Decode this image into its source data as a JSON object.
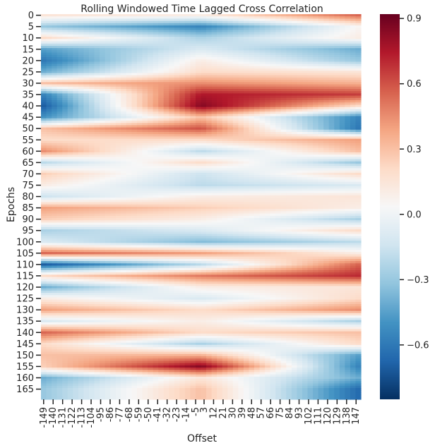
{
  "chart_data": {
    "type": "heatmap",
    "title": "Rolling Windowed Time Lagged Cross Correlation",
    "xlabel": "Offset",
    "ylabel": "Epochs",
    "x_tick_labels": [
      "-149",
      "-140",
      "-131",
      "-122",
      "-113",
      "-104",
      "-95",
      "-86",
      "-77",
      "-68",
      "-59",
      "-50",
      "-41",
      "-32",
      "-23",
      "-14",
      "-5",
      "3",
      "12",
      "21",
      "30",
      "39",
      "48",
      "57",
      "66",
      "75",
      "84",
      "93",
      "102",
      "111",
      "120",
      "129",
      "138",
      "147"
    ],
    "y_tick_labels": [
      "0",
      "5",
      "10",
      "15",
      "20",
      "25",
      "30",
      "35",
      "40",
      "45",
      "50",
      "55",
      "60",
      "65",
      "70",
      "75",
      "80",
      "85",
      "90",
      "95",
      "100",
      "105",
      "110",
      "115",
      "120",
      "125",
      "130",
      "135",
      "140",
      "145",
      "150",
      "155",
      "160",
      "165"
    ],
    "x_range": [
      -149,
      149
    ],
    "epochs": 170,
    "colorbar": {
      "colormap": "RdBu_r",
      "range": [
        -0.85,
        0.92
      ],
      "ticks": [
        0.9,
        0.6,
        0.3,
        0.0,
        -0.3,
        -0.6
      ],
      "tick_labels": [
        "0.9",
        "0.6",
        "0.3",
        "0.0",
        "−0.3",
        "−0.6"
      ]
    },
    "rows": [
      {
        "epoch": 0,
        "left": 0.15,
        "center": 0.1,
        "right": 0.55
      },
      {
        "epoch": 5,
        "left": -0.3,
        "center": -0.55,
        "right": 0.05
      },
      {
        "epoch": 10,
        "left": 0.2,
        "center": -0.25,
        "right": 0.1
      },
      {
        "epoch": 15,
        "left": -0.45,
        "center": -0.1,
        "right": -0.4
      },
      {
        "epoch": 20,
        "left": -0.6,
        "center": 0.1,
        "right": -0.3
      },
      {
        "epoch": 25,
        "left": -0.4,
        "center": 0.2,
        "right": 0.15
      },
      {
        "epoch": 30,
        "left": 0.3,
        "center": 0.45,
        "right": 0.35
      },
      {
        "epoch": 35,
        "left": -0.55,
        "center": 0.75,
        "right": 0.65
      },
      {
        "epoch": 40,
        "left": -0.7,
        "center": 0.85,
        "right": 0.2
      },
      {
        "epoch": 45,
        "left": -0.5,
        "center": 0.3,
        "right": -0.55
      },
      {
        "epoch": 50,
        "left": 0.3,
        "center": 0.6,
        "right": -0.6
      },
      {
        "epoch": 55,
        "left": 0.2,
        "center": 0.2,
        "right": 0.4
      },
      {
        "epoch": 60,
        "left": 0.45,
        "center": -0.2,
        "right": 0.3
      },
      {
        "epoch": 65,
        "left": -0.2,
        "center": 0.2,
        "right": -0.3
      },
      {
        "epoch": 70,
        "left": 0.25,
        "center": -0.15,
        "right": 0.2
      },
      {
        "epoch": 75,
        "left": 0.1,
        "center": -0.2,
        "right": -0.1
      },
      {
        "epoch": 80,
        "left": -0.15,
        "center": 0.1,
        "right": 0.15
      },
      {
        "epoch": 85,
        "left": 0.4,
        "center": 0.25,
        "right": 0.1
      },
      {
        "epoch": 90,
        "left": 0.25,
        "center": 0.1,
        "right": -0.25
      },
      {
        "epoch": 95,
        "left": -0.25,
        "center": -0.1,
        "right": 0.2
      },
      {
        "epoch": 100,
        "left": -0.1,
        "center": -0.35,
        "right": -0.2
      },
      {
        "epoch": 105,
        "left": 0.55,
        "center": 0.4,
        "right": 0.1
      },
      {
        "epoch": 110,
        "left": -0.7,
        "center": -0.2,
        "right": 0.55
      },
      {
        "epoch": 115,
        "left": 0.2,
        "center": 0.5,
        "right": 0.7
      },
      {
        "epoch": 120,
        "left": -0.4,
        "center": 0.1,
        "right": 0.15
      },
      {
        "epoch": 125,
        "left": 0.1,
        "center": -0.1,
        "right": 0.2
      },
      {
        "epoch": 130,
        "left": 0.4,
        "center": 0.2,
        "right": 0.45
      },
      {
        "epoch": 135,
        "left": -0.1,
        "center": 0.1,
        "right": -0.25
      },
      {
        "epoch": 140,
        "left": 0.55,
        "center": 0.2,
        "right": 0.3
      },
      {
        "epoch": 145,
        "left": 0.2,
        "center": -0.25,
        "right": 0.2
      },
      {
        "epoch": 150,
        "left": 0.3,
        "center": 0.35,
        "right": -0.45
      },
      {
        "epoch": 155,
        "left": 0.25,
        "center": 0.85,
        "right": -0.55
      },
      {
        "epoch": 160,
        "left": -0.4,
        "center": 0.15,
        "right": -0.4
      },
      {
        "epoch": 165,
        "left": -0.3,
        "center": 0.3,
        "right": -0.65
      }
    ]
  }
}
